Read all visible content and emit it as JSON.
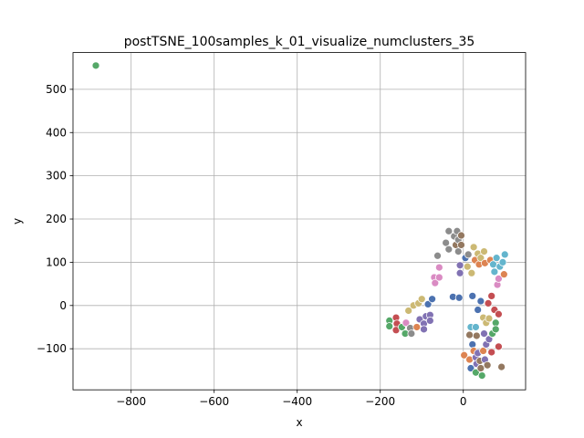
{
  "chart_data": {
    "type": "scatter",
    "title": "postTSNE_100samples_k_01_visualize_numclusters_35",
    "xlabel": "x",
    "ylabel": "y",
    "xlim": [
      -940,
      150
    ],
    "ylim": [
      -195,
      585
    ],
    "xticks": [
      -800,
      -600,
      -400,
      -200,
      0
    ],
    "yticks": [
      -100,
      0,
      100,
      200,
      300,
      400,
      500
    ],
    "xtick_labels": [
      "−800",
      "−600",
      "−400",
      "−200",
      "0"
    ],
    "ytick_labels": [
      "−100",
      "0",
      "100",
      "200",
      "300",
      "400",
      "500"
    ],
    "grid": true,
    "legend": false,
    "points": [
      {
        "x": -885,
        "y": 555,
        "color": "#55a868"
      },
      {
        "x": -178,
        "y": -35,
        "color": "#55a868"
      },
      {
        "x": -178,
        "y": -48,
        "color": "#55a868"
      },
      {
        "x": -162,
        "y": -28,
        "color": "#c44e52"
      },
      {
        "x": -160,
        "y": -42,
        "color": "#c44e52"
      },
      {
        "x": -162,
        "y": -57,
        "color": "#c44e52"
      },
      {
        "x": -148,
        "y": -50,
        "color": "#55a868"
      },
      {
        "x": -140,
        "y": -65,
        "color": "#55a868"
      },
      {
        "x": -138,
        "y": -40,
        "color": "#da8bc3"
      },
      {
        "x": -132,
        "y": -12,
        "color": "#ccb974"
      },
      {
        "x": -128,
        "y": -52,
        "color": "#8c8c8c"
      },
      {
        "x": -125,
        "y": -65,
        "color": "#8c8c8c"
      },
      {
        "x": -120,
        "y": 0,
        "color": "#ccb974"
      },
      {
        "x": -112,
        "y": -50,
        "color": "#dd8452"
      },
      {
        "x": -108,
        "y": 5,
        "color": "#ccb974"
      },
      {
        "x": -105,
        "y": -32,
        "color": "#8172b3"
      },
      {
        "x": -100,
        "y": 15,
        "color": "#ccb974"
      },
      {
        "x": -95,
        "y": -42,
        "color": "#8172b3"
      },
      {
        "x": -95,
        "y": -55,
        "color": "#8172b3"
      },
      {
        "x": -90,
        "y": -25,
        "color": "#8172b3"
      },
      {
        "x": -85,
        "y": 3,
        "color": "#4c72b0"
      },
      {
        "x": -80,
        "y": -22,
        "color": "#8172b3"
      },
      {
        "x": -80,
        "y": -35,
        "color": "#8172b3"
      },
      {
        "x": -75,
        "y": 15,
        "color": "#4c72b0"
      },
      {
        "x": -70,
        "y": 65,
        "color": "#da8bc3"
      },
      {
        "x": -68,
        "y": 52,
        "color": "#da8bc3"
      },
      {
        "x": -62,
        "y": 115,
        "color": "#8c8c8c"
      },
      {
        "x": -58,
        "y": 88,
        "color": "#da8bc3"
      },
      {
        "x": -58,
        "y": 65,
        "color": "#da8bc3"
      },
      {
        "x": -42,
        "y": 145,
        "color": "#8c8c8c"
      },
      {
        "x": -35,
        "y": 172,
        "color": "#8c8c8c"
      },
      {
        "x": -35,
        "y": 130,
        "color": "#8c8c8c"
      },
      {
        "x": -25,
        "y": 20,
        "color": "#4c72b0"
      },
      {
        "x": -22,
        "y": 160,
        "color": "#8c8c8c"
      },
      {
        "x": -18,
        "y": 140,
        "color": "#937860"
      },
      {
        "x": -15,
        "y": 172,
        "color": "#8c8c8c"
      },
      {
        "x": -12,
        "y": 152,
        "color": "#8c8c8c"
      },
      {
        "x": -12,
        "y": 125,
        "color": "#8c8c8c"
      },
      {
        "x": -10,
        "y": 18,
        "color": "#4c72b0"
      },
      {
        "x": -8,
        "y": 93,
        "color": "#8172b3"
      },
      {
        "x": -8,
        "y": 75,
        "color": "#8172b3"
      },
      {
        "x": -5,
        "y": 162,
        "color": "#937860"
      },
      {
        "x": -5,
        "y": 140,
        "color": "#937860"
      },
      {
        "x": 2,
        "y": -115,
        "color": "#dd8452"
      },
      {
        "x": 5,
        "y": 110,
        "color": "#4c72b0"
      },
      {
        "x": 10,
        "y": 90,
        "color": "#ccb974"
      },
      {
        "x": 12,
        "y": 118,
        "color": "#8c8c8c"
      },
      {
        "x": 15,
        "y": -68,
        "color": "#937860"
      },
      {
        "x": 15,
        "y": -125,
        "color": "#dd8452"
      },
      {
        "x": 18,
        "y": -50,
        "color": "#64b5cd"
      },
      {
        "x": 18,
        "y": -145,
        "color": "#4c72b0"
      },
      {
        "x": 20,
        "y": 75,
        "color": "#ccb974"
      },
      {
        "x": 22,
        "y": 22,
        "color": "#4c72b0"
      },
      {
        "x": 22,
        "y": -90,
        "color": "#4c72b0"
      },
      {
        "x": 25,
        "y": 135,
        "color": "#ccb974"
      },
      {
        "x": 25,
        "y": -105,
        "color": "#dd8452"
      },
      {
        "x": 28,
        "y": 105,
        "color": "#dd8452"
      },
      {
        "x": 30,
        "y": -50,
        "color": "#64b5cd"
      },
      {
        "x": 30,
        "y": -120,
        "color": "#8172b3"
      },
      {
        "x": 30,
        "y": -155,
        "color": "#55a868"
      },
      {
        "x": 32,
        "y": -70,
        "color": "#937860"
      },
      {
        "x": 32,
        "y": -135,
        "color": "#8172b3"
      },
      {
        "x": 35,
        "y": 120,
        "color": "#ccb974"
      },
      {
        "x": 35,
        "y": -10,
        "color": "#4c72b0"
      },
      {
        "x": 35,
        "y": -110,
        "color": "#8172b3"
      },
      {
        "x": 38,
        "y": 95,
        "color": "#dd8452"
      },
      {
        "x": 40,
        "y": -128,
        "color": "#937860"
      },
      {
        "x": 42,
        "y": 110,
        "color": "#ccb974"
      },
      {
        "x": 42,
        "y": 10,
        "color": "#4c72b0"
      },
      {
        "x": 42,
        "y": -145,
        "color": "#937860"
      },
      {
        "x": 45,
        "y": -162,
        "color": "#55a868"
      },
      {
        "x": 48,
        "y": -28,
        "color": "#ccb974"
      },
      {
        "x": 48,
        "y": -105,
        "color": "#dd8452"
      },
      {
        "x": 50,
        "y": 125,
        "color": "#ccb974"
      },
      {
        "x": 50,
        "y": -65,
        "color": "#8172b3"
      },
      {
        "x": 52,
        "y": 98,
        "color": "#dd8452"
      },
      {
        "x": 52,
        "y": -125,
        "color": "#8172b3"
      },
      {
        "x": 55,
        "y": -40,
        "color": "#ccb974"
      },
      {
        "x": 55,
        "y": -90,
        "color": "#8172b3"
      },
      {
        "x": 58,
        "y": -138,
        "color": "#937860"
      },
      {
        "x": 60,
        "y": 5,
        "color": "#c44e52"
      },
      {
        "x": 62,
        "y": -30,
        "color": "#ccb974"
      },
      {
        "x": 62,
        "y": -78,
        "color": "#8172b3"
      },
      {
        "x": 65,
        "y": 105,
        "color": "#dd8452"
      },
      {
        "x": 68,
        "y": 22,
        "color": "#c44e52"
      },
      {
        "x": 68,
        "y": -108,
        "color": "#c44e52"
      },
      {
        "x": 70,
        "y": -65,
        "color": "#55a868"
      },
      {
        "x": 72,
        "y": 95,
        "color": "#64b5cd"
      },
      {
        "x": 75,
        "y": 78,
        "color": "#64b5cd"
      },
      {
        "x": 75,
        "y": -10,
        "color": "#c44e52"
      },
      {
        "x": 78,
        "y": -40,
        "color": "#55a868"
      },
      {
        "x": 78,
        "y": -55,
        "color": "#55a868"
      },
      {
        "x": 80,
        "y": 110,
        "color": "#64b5cd"
      },
      {
        "x": 82,
        "y": 48,
        "color": "#da8bc3"
      },
      {
        "x": 85,
        "y": 62,
        "color": "#da8bc3"
      },
      {
        "x": 85,
        "y": -20,
        "color": "#c44e52"
      },
      {
        "x": 85,
        "y": -95,
        "color": "#c44e52"
      },
      {
        "x": 88,
        "y": 90,
        "color": "#64b5cd"
      },
      {
        "x": 92,
        "y": -142,
        "color": "#937860"
      },
      {
        "x": 95,
        "y": 100,
        "color": "#64b5cd"
      },
      {
        "x": 98,
        "y": 72,
        "color": "#dd8452"
      },
      {
        "x": 100,
        "y": 118,
        "color": "#64b5cd"
      }
    ]
  }
}
